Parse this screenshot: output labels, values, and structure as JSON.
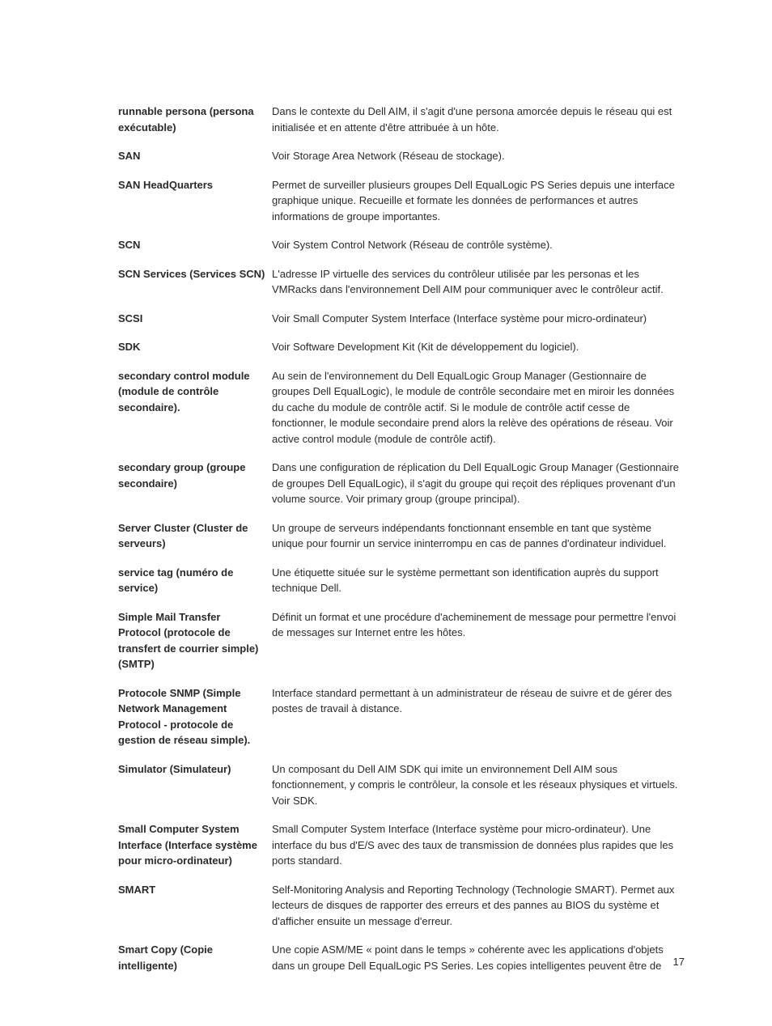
{
  "page_number": "17",
  "text_color": "#2a2a2a",
  "background_color": "#ffffff",
  "font_size": 13,
  "entries": [
    {
      "term": "runnable persona (persona exécutable)",
      "definition": "Dans le contexte du Dell AIM, il s'agit d'une persona amorcée depuis le réseau qui est initialisée et en attente d'être attribuée à un hôte."
    },
    {
      "term": "SAN",
      "definition": "Voir Storage Area Network (Réseau de stockage)."
    },
    {
      "term": "SAN HeadQuarters",
      "definition": "Permet de surveiller plusieurs groupes Dell EqualLogic PS Series depuis une interface graphique unique. Recueille et formate les données de performances et autres informations de groupe importantes."
    },
    {
      "term": "SCN",
      "definition": "Voir System Control Network (Réseau de contrôle système)."
    },
    {
      "term": "SCN Services (Services SCN)",
      "definition": "L'adresse IP virtuelle des services du contrôleur utilisée par les personas et les VMRacks dans l'environnement Dell AIM pour communiquer avec le contrôleur actif."
    },
    {
      "term": "SCSI",
      "definition": "Voir Small Computer System Interface (Interface système pour micro-ordinateur)"
    },
    {
      "term": "SDK",
      "definition": "Voir Software Development Kit (Kit de développement du logiciel)."
    },
    {
      "term": "secondary control module (module de contrôle secondaire).",
      "definition": "Au sein de l'environnement du Dell EqualLogic Group Manager (Gestionnaire de groupes Dell EqualLogic), le module de contrôle secondaire met en miroir les données du cache du module de contrôle actif. Si le module de contrôle actif cesse de fonctionner, le module secondaire prend alors la relève des opérations de réseau. Voir active control module (module de contrôle actif)."
    },
    {
      "term": "secondary group (groupe secondaire)",
      "definition": "Dans une configuration de réplication du Dell EqualLogic Group Manager (Gestionnaire de groupes Dell EqualLogic), il s'agit du groupe qui reçoit des répliques provenant d'un volume source. Voir primary group (groupe principal)."
    },
    {
      "term": "Server Cluster (Cluster de serveurs)",
      "definition": "Un groupe de serveurs indépendants fonctionnant ensemble en tant que système unique pour fournir un service ininterrompu en cas de pannes d'ordinateur individuel."
    },
    {
      "term": "service tag (numéro de service)",
      "definition": "Une étiquette située sur le système permettant son identification auprès du support technique Dell."
    },
    {
      "term": "Simple Mail Transfer Protocol (protocole de transfert de courrier simple) (SMTP)",
      "definition": "Définit un format et une procédure d'acheminement de message pour permettre l'envoi de messages sur Internet entre les hôtes."
    },
    {
      "term": "Protocole SNMP (Simple Network Management Protocol - protocole de gestion de réseau simple).",
      "definition": "Interface standard permettant à un administrateur de réseau de suivre et de gérer des postes de travail à distance."
    },
    {
      "term": "Simulator (Simulateur)",
      "definition": "Un composant du Dell AIM SDK qui imite un environnement Dell AIM sous fonctionnement, y compris le contrôleur, la console et les réseaux physiques et virtuels. Voir SDK."
    },
    {
      "term": "Small Computer System Interface (Interface système pour micro-ordinateur)",
      "definition": "Small Computer System Interface (Interface système pour micro-ordinateur). Une interface du bus d'E/S avec des taux de transmission de données plus rapides que les ports standard."
    },
    {
      "term": "SMART",
      "definition": "Self-Monitoring Analysis and Reporting Technology (Technologie SMART). Permet aux lecteurs de disques de rapporter des erreurs et des pannes au BIOS du système et d'afficher ensuite un message d'erreur."
    },
    {
      "term": "Smart Copy (Copie intelligente)",
      "definition": "Une copie ASM/ME « point dans le temps » cohérente avec les applications d'objets dans un groupe Dell EqualLogic PS Series. Les copies intelligentes peuvent être de"
    }
  ]
}
